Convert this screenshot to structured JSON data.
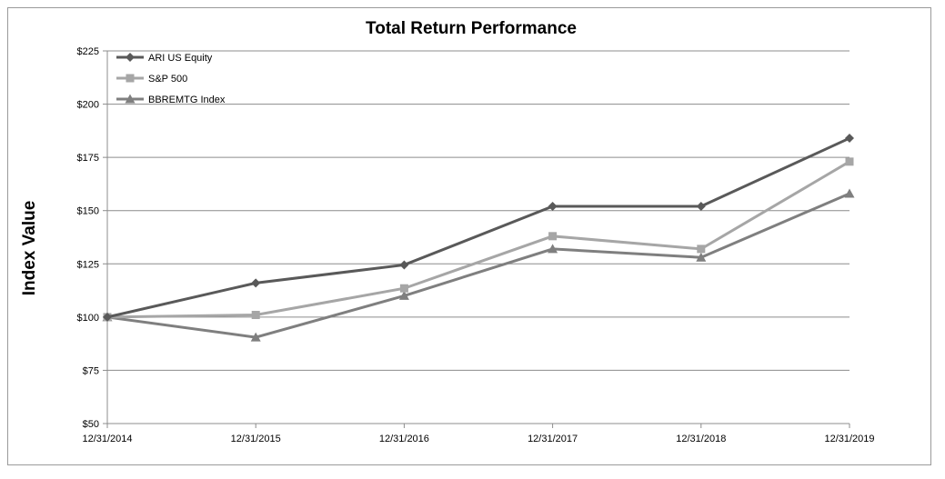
{
  "chart_data": {
    "type": "line",
    "title": "Total Return Performance",
    "xlabel": "",
    "ylabel": "Index Value",
    "categories": [
      "12/31/2014",
      "12/31/2015",
      "12/31/2016",
      "12/31/2017",
      "12/31/2018",
      "12/31/2019"
    ],
    "y_ticks": [
      "$50",
      "$75",
      "$100",
      "$125",
      "$150",
      "$175",
      "$200",
      "$225"
    ],
    "ylim": [
      50,
      225
    ],
    "grid": true,
    "legend_position": "top-left",
    "series": [
      {
        "name": "ARI US Equity",
        "values": [
          100,
          116,
          124.5,
          152,
          152,
          184
        ],
        "color": "#595959",
        "marker": "diamond"
      },
      {
        "name": "S&P 500",
        "values": [
          100,
          101,
          113.5,
          138,
          132,
          173
        ],
        "color": "#a6a6a6",
        "marker": "square"
      },
      {
        "name": "BBREMTG Index",
        "values": [
          100,
          90.5,
          110,
          132,
          128,
          158
        ],
        "color": "#7f7f7f",
        "marker": "triangle"
      }
    ]
  }
}
